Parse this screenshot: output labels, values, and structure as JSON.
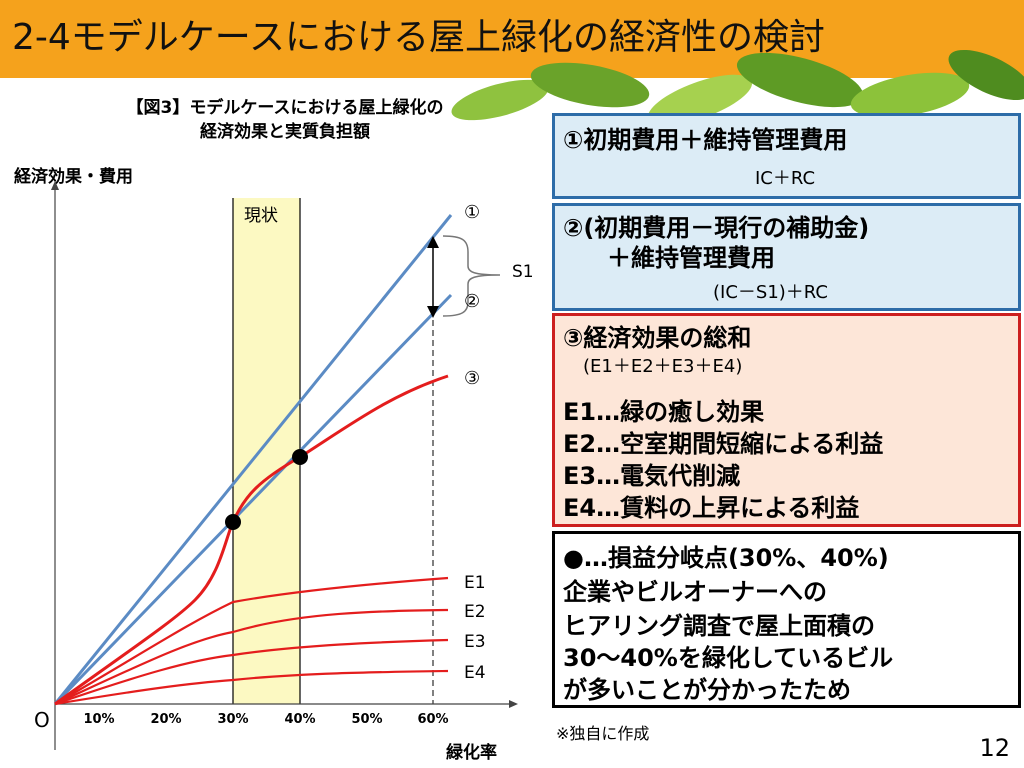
{
  "slide": {
    "title": "2-4モデルケースにおける屋上緑化の経済性の検討",
    "page_number": "12",
    "note": "※独自に作成"
  },
  "chart": {
    "title_line1": "【図3】モデルケースにおける屋上緑化の",
    "title_line2": "経済効果と実質負担額",
    "y_label": "経済効果・費用",
    "x_label": "緑化率",
    "origin_label": "O",
    "x_ticks": [
      "10%",
      "20%",
      "30%",
      "40%",
      "50%",
      "60%"
    ],
    "current_label": "現状",
    "line1_label": "①",
    "line2_label": "②",
    "line3_label": "③",
    "bracket_label": "S1",
    "e_labels": [
      "E1",
      "E2",
      "E3",
      "E4"
    ]
  },
  "boxes": {
    "box1": {
      "title": "①初期費用＋維持管理費用",
      "sub": "IC＋RC"
    },
    "box2": {
      "title": "②(初期費用－現行の補助金)",
      "title2": "＋維持管理費用",
      "sub": "(IC－S1)＋RC"
    },
    "box3": {
      "title": "③経済効果の総和",
      "sub": "(E1＋E2＋E3＋E4)",
      "items": [
        "E1…緑の癒し効果",
        "E2…空室期間短縮による利益",
        "E3…電気代削減",
        "E4…賃料の上昇による利益"
      ]
    },
    "box4": {
      "lines": [
        "●…損益分岐点(30%、40%)",
        "企業やビルオーナーへの",
        "ヒアリング調査で屋上面積の",
        "30～40%を緑化しているビル",
        "が多いことが分かったため"
      ]
    }
  },
  "colors": {
    "title_bar": "#f5a21c",
    "blue_line": "#5b8bc4",
    "red_line": "#e41d1d",
    "highlight": "#fcf9c2"
  }
}
